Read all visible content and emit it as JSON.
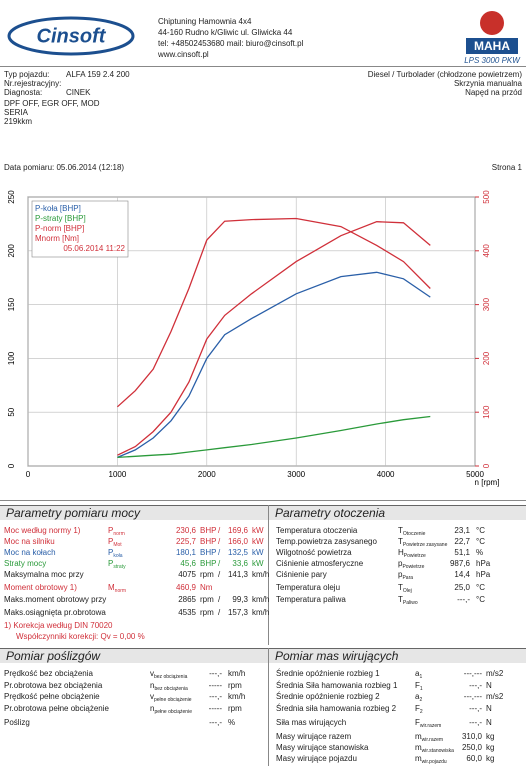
{
  "header": {
    "logo": "Cinsoft",
    "company": "Chiptuning Hamownia 4x4",
    "address": "44-160 Rudno k/Gliwic ul. Gliwicka 44",
    "contact": "tel: +48502453680 mail: biuro@cinsoft.pl",
    "web": "www.cinsoft.pl",
    "brand": "MAHA",
    "model": "LPS 3000 PKW"
  },
  "vehicle": {
    "fields": [
      {
        "label": "Typ pojazdu:",
        "value": "ALFA 159 2.4 200"
      },
      {
        "label": "Nr.rejestracyjny:"
      },
      {
        "label": "Diagnosta:",
        "value": "CINEK"
      }
    ],
    "engine": [
      "Diesel / Turbolader (chłodzone powietrzem)",
      "Skrzynia manualna",
      "Napęd na przód"
    ],
    "notes": [
      "DPF OFF, EGR OFF, MOD",
      "SERIA",
      "219kkm"
    ]
  },
  "measurement": {
    "date": "Data pomiaru: 05.06.2014 (12:18)",
    "page": "Strona 1"
  },
  "chart_data": {
    "type": "line",
    "x": [
      1000,
      1200,
      1400,
      1600,
      1800,
      2000,
      2200,
      2500,
      3000,
      3500,
      3900,
      4200,
      4500
    ],
    "series": [
      {
        "name": "P-koła [BHP]",
        "color": "#2a5fa8",
        "values": [
          8,
          15,
          26,
          42,
          65,
          100,
          122,
          137,
          160,
          176,
          180,
          174,
          157
        ]
      },
      {
        "name": "P-straty [BHP]",
        "color": "#2a9a3a",
        "values": [
          8,
          9,
          10,
          11,
          13,
          15,
          17,
          20,
          26,
          33,
          39,
          43,
          46
        ]
      },
      {
        "name": "P-norm [BHP]",
        "color": "#d0303a",
        "values": [
          10,
          18,
          32,
          50,
          78,
          118,
          140,
          160,
          190,
          214,
          227,
          226,
          205
        ]
      },
      {
        "name": "Mnorm [Nm]",
        "color": "#d0303a",
        "axis": "y2",
        "values": [
          110,
          140,
          180,
          250,
          330,
          420,
          455,
          458,
          460,
          445,
          410,
          380,
          330
        ]
      }
    ],
    "run_label": "05.06.2014 11:22",
    "xlabel": "n [rpm]",
    "xlim": [
      0,
      5000
    ],
    "xticks": [
      0,
      1000,
      2000,
      3000,
      4000,
      5000
    ],
    "ylim": [
      0,
      250
    ],
    "yticks": [
      0,
      50,
      100,
      150,
      200,
      250
    ],
    "y2lim": [
      0,
      500
    ],
    "y2ticks": [
      0,
      100,
      200,
      300,
      400,
      500
    ],
    "y2_color": "#d0303a",
    "grid": true,
    "legend": "upper left"
  },
  "power": {
    "title": "Parametry pomiaru mocy",
    "rows": [
      {
        "label": "Moc według normy 1)",
        "symbol": {
          "main": "P",
          "sub": "norm"
        },
        "value": "230,6",
        "unit": "BHP",
        "sep": "/",
        "value2": "169,6",
        "unit2": "kW",
        "color": "#d0303a"
      },
      {
        "label": "Moc na silniku",
        "symbol": {
          "main": "P",
          "sub": "Mot"
        },
        "value": "225,7",
        "unit": "BHP",
        "sep": "/",
        "value2": "166,0",
        "unit2": "kW",
        "color": "#d0303a"
      },
      {
        "label": "Moc na kołach",
        "symbol": {
          "main": "P",
          "sub": "koła"
        },
        "value": "180,1",
        "unit": "BHP",
        "sep": "/",
        "value2": "132,5",
        "unit2": "kW",
        "color": "#2a5fa8"
      },
      {
        "label": "Straty mocy",
        "symbol": {
          "main": "P",
          "sub": "straty"
        },
        "value": "45,6",
        "unit": "BHP",
        "sep": "/",
        "value2": "33,6",
        "unit2": "kW",
        "color": "#2a9a3a"
      },
      {
        "label": "Maksymalna moc przy",
        "value": "4075",
        "unit": "rpm",
        "sep": "/",
        "value2": "141,3",
        "unit2": "km/h",
        "color": "#222222"
      },
      {
        "label": "Moment obrotowy 1)",
        "symbol": {
          "main": "M",
          "sub": "norm"
        },
        "value": "460,9",
        "unit": "Nm",
        "color": "#d0303a"
      },
      {
        "label": "Maks.moment obrotowy przy",
        "value": "2865",
        "unit": "rpm",
        "sep": "/",
        "value2": "99,3",
        "unit2": "km/h",
        "color": "#222222"
      },
      {
        "label": "Maks.osiągnięta pr.obrotowa",
        "value": "4535",
        "unit": "rpm",
        "sep": "/",
        "value2": "157,3",
        "unit2": "km/h",
        "color": "#222222"
      }
    ],
    "notes": [
      "1) Korekcja według DIN 70020",
      "Współczynniki korekcji: Qv = 0,00 %"
    ]
  },
  "ambient": {
    "title": "Parametry otoczenia",
    "rows": [
      {
        "label": "Temperatura otoczenia",
        "symbol": {
          "main": "T",
          "sub": "Otoczenie"
        },
        "value": "23,1",
        "unit": "°C"
      },
      {
        "label": "Temp.powietrza zasysanego",
        "symbol": {
          "main": "T",
          "sub": "Powietrze zasysane"
        },
        "value": "22,7",
        "unit": "°C"
      },
      {
        "label": "Wilgotność powietrza",
        "symbol": {
          "main": "H",
          "sub": "Powietrze"
        },
        "value": "51,1",
        "unit": "%"
      },
      {
        "label": "Ciśnienie atmosferyczne",
        "symbol": {
          "main": "p",
          "sub": "Powietrze"
        },
        "value": "987,6",
        "unit": "hPa"
      },
      {
        "label": "Ciśnienie pary",
        "symbol": {
          "main": "p",
          "sub": "Para"
        },
        "value": "14,4",
        "unit": "hPa"
      },
      {
        "label": "Temperatura oleju",
        "symbol": {
          "main": "T",
          "sub": "Olej"
        },
        "value": "25,0",
        "unit": "°C"
      },
      {
        "label": "Temperatura paliwa",
        "symbol": {
          "main": "T",
          "sub": "Paliwo"
        },
        "value": "---,-",
        "unit": "°C"
      }
    ]
  },
  "slip": {
    "title": "Pomiar poślizgów",
    "rows": [
      {
        "label": "Prędkość bez obciążenia",
        "symbol": {
          "main": "v",
          "sub": "bez obciążenia"
        },
        "value": "---,-",
        "unit": "km/h"
      },
      {
        "label": "Pr.obrotowa bez obciążenia",
        "symbol": {
          "main": "n",
          "sub": "bez obciążenia"
        },
        "value": "-----",
        "unit": "rpm"
      },
      {
        "label": "Prędkość pełne obciążenie",
        "symbol": {
          "main": "v",
          "sub": "pełne obciążenie"
        },
        "value": "---,-",
        "unit": "km/h"
      },
      {
        "label": "Pr.obrotowa pełne obciążenie",
        "symbol": {
          "main": "n",
          "sub": "pełne obciążenie"
        },
        "value": "-----",
        "unit": "rpm"
      },
      {
        "label": "Poślizg",
        "value": "---,-",
        "unit": "%"
      }
    ]
  },
  "masses": {
    "title": "Pomiar mas wirujących",
    "rows": [
      {
        "label": "Średnie opóźnienie rozbieg 1",
        "symbol": {
          "main": "a",
          "sub": "1"
        },
        "value": "---,---",
        "unit": "m/s2"
      },
      {
        "label": "Średnia Siła hamowania rozbieg 1",
        "symbol": {
          "main": "F",
          "sub": "1"
        },
        "value": "---,-",
        "unit": "N"
      },
      {
        "label": "Średnie opóźnienie rozbieg 2",
        "symbol": {
          "main": "a",
          "sub": "2"
        },
        "value": "---,---",
        "unit": "m/s2"
      },
      {
        "label": "Średnia siła hamowania rozbieg 2",
        "symbol": {
          "main": "F",
          "sub": "2"
        },
        "value": "---,-",
        "unit": "N"
      },
      {
        "label": "Siła mas wirujących",
        "symbol": {
          "main": "F",
          "sub": "wir.razem"
        },
        "value": "---,-",
        "unit": "N"
      },
      {
        "label": "Masy wirujące razem",
        "symbol": {
          "main": "m",
          "sub": "wir.razem"
        },
        "value": "310,0",
        "unit": "kg"
      },
      {
        "label": "Masy wirujące stanowiska",
        "symbol": {
          "main": "m",
          "sub": "wir.stanowiska"
        },
        "value": "250,0",
        "unit": "kg"
      },
      {
        "label": "Masy wirujące pojazdu",
        "symbol": {
          "main": "m",
          "sub": "wir.pojazdu"
        },
        "value": "60,0",
        "unit": "kg"
      }
    ]
  }
}
